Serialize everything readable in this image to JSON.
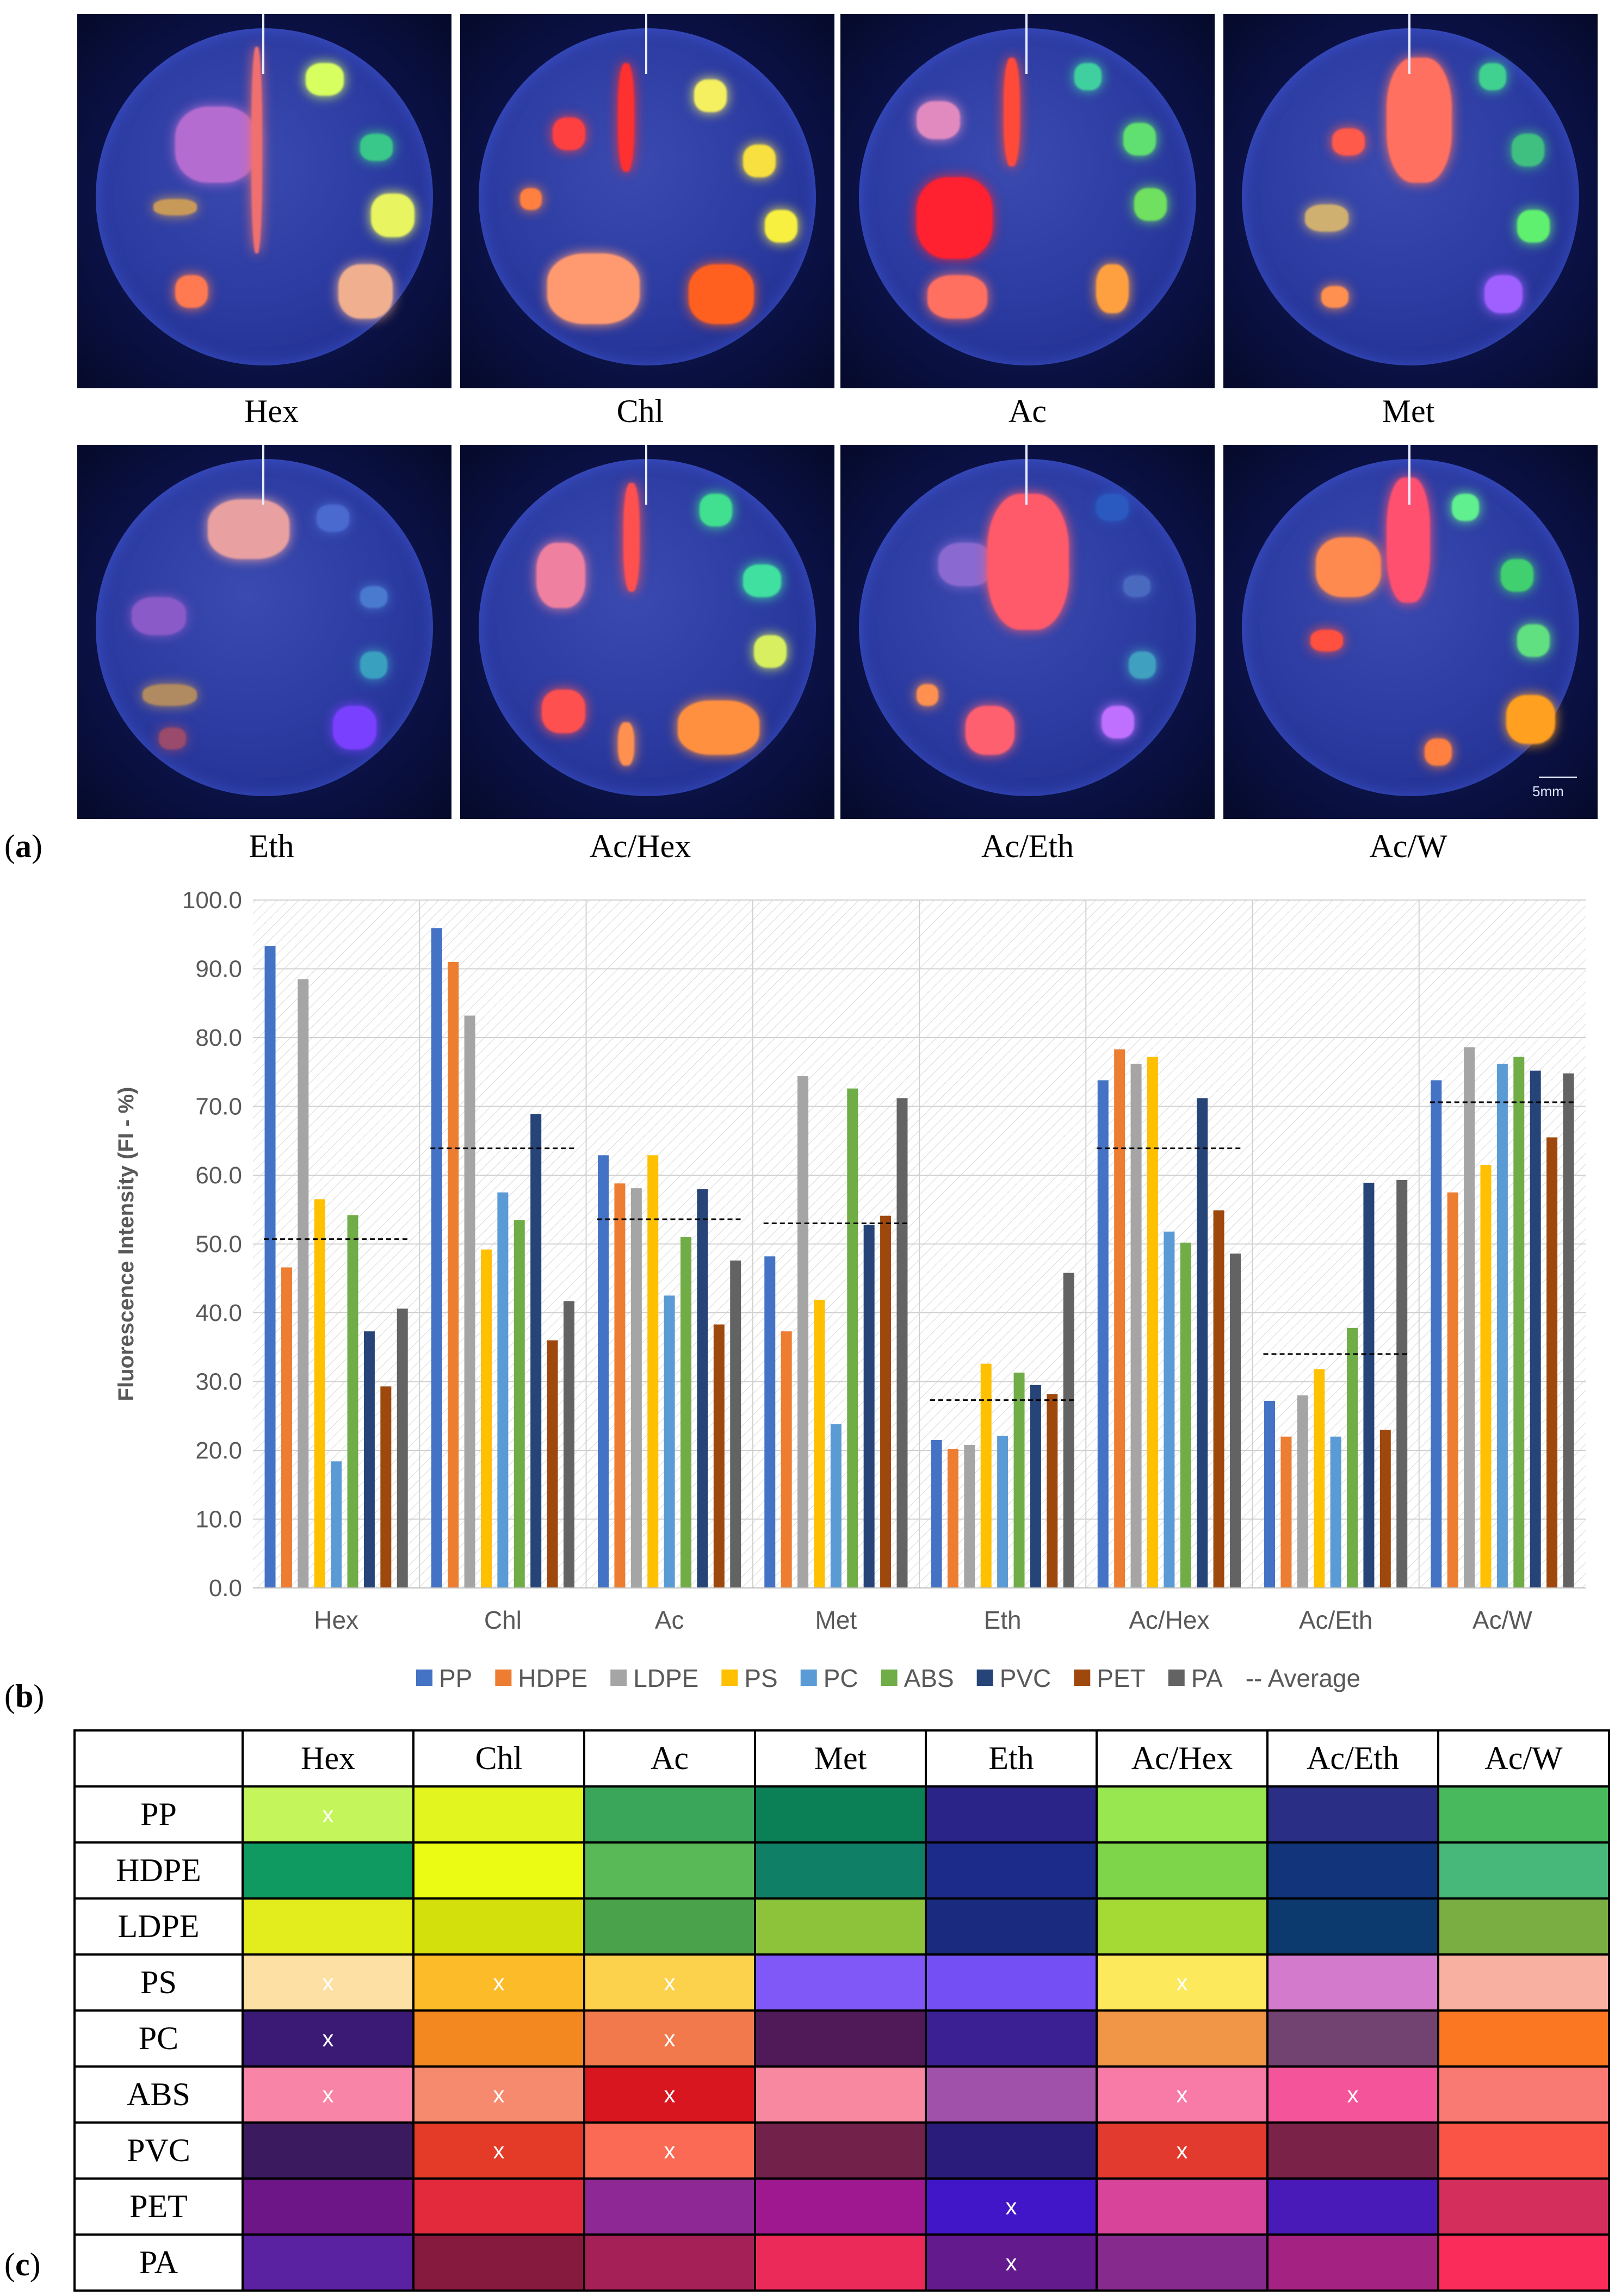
{
  "panel_letters": {
    "a": "a",
    "b": "b",
    "c": "c"
  },
  "photos": {
    "labels": [
      "Hex",
      "Chl",
      "Ac",
      "Met",
      "Eth",
      "Ac/Hex",
      "Ac/Eth",
      "Ac/W"
    ],
    "scale_bar_label": "5mm"
  },
  "chart_data": {
    "type": "bar",
    "ylabel": "Fluorescence Intensity (FI - %)",
    "xlabel": "",
    "ylim": [
      0,
      100
    ],
    "yticks": [
      "0.0",
      "10.0",
      "20.0",
      "30.0",
      "40.0",
      "50.0",
      "60.0",
      "70.0",
      "80.0",
      "90.0",
      "100.0"
    ],
    "categories": [
      "Hex",
      "Chl",
      "Ac",
      "Met",
      "Eth",
      "Ac/Hex",
      "Ac/Eth",
      "Ac/W"
    ],
    "series": [
      {
        "name": "PP",
        "color": "#4472C4",
        "values": [
          93.3,
          95.9,
          62.9,
          48.2,
          21.5,
          73.8,
          27.2,
          73.8
        ]
      },
      {
        "name": "HDPE",
        "color": "#ED7D31",
        "values": [
          46.6,
          91.0,
          58.8,
          37.3,
          20.2,
          78.3,
          22.0,
          57.5
        ]
      },
      {
        "name": "LDPE",
        "color": "#A5A5A5",
        "values": [
          88.5,
          83.2,
          58.1,
          74.4,
          20.8,
          76.2,
          28.0,
          78.6
        ]
      },
      {
        "name": "PS",
        "color": "#FFC000",
        "values": [
          56.5,
          49.2,
          62.9,
          41.9,
          32.6,
          77.2,
          31.8,
          61.5
        ]
      },
      {
        "name": "PC",
        "color": "#5B9BD5",
        "values": [
          18.4,
          57.5,
          42.5,
          23.8,
          22.1,
          51.8,
          22.0,
          76.2
        ]
      },
      {
        "name": "ABS",
        "color": "#70AD47",
        "values": [
          54.2,
          53.5,
          51.0,
          72.6,
          31.3,
          50.2,
          37.8,
          77.2
        ]
      },
      {
        "name": "PVC",
        "color": "#264478",
        "values": [
          37.3,
          68.9,
          58.0,
          52.8,
          29.5,
          71.2,
          58.9,
          75.2
        ]
      },
      {
        "name": "PET",
        "color": "#9E480E",
        "values": [
          29.3,
          36.0,
          38.3,
          54.1,
          28.2,
          54.9,
          23.0,
          65.5
        ]
      },
      {
        "name": "PA",
        "color": "#636363",
        "values": [
          40.6,
          41.7,
          47.6,
          71.2,
          45.8,
          48.6,
          59.3,
          74.8
        ]
      }
    ],
    "average": [
      50.7,
      63.9,
      53.6,
      53.0,
      27.3,
      63.9,
      34.0,
      70.6
    ],
    "legend": [
      "PP",
      "HDPE",
      "LDPE",
      "PS",
      "PC",
      "ABS",
      "PVC",
      "PET",
      "PA",
      "-- Average"
    ],
    "legend_position": "bottom",
    "grid": true
  },
  "table": {
    "columns": [
      "Hex",
      "Chl",
      "Ac",
      "Met",
      "Eth",
      "Ac/Hex",
      "Ac/Eth",
      "Ac/W"
    ],
    "rows": [
      {
        "label": "PP",
        "colors": [
          "#c4f55a",
          "#e2f51e",
          "#3aa65a",
          "#0b7f55",
          "#2a2489",
          "#98e650",
          "#2a2e84",
          "#48b95c"
        ],
        "marks": [
          "x",
          "",
          "",
          "",
          "",
          "",
          "",
          ""
        ]
      },
      {
        "label": "HDPE",
        "colors": [
          "#0f9a62",
          "#ecfb14",
          "#5ab957",
          "#0f7f65",
          "#1c2b8a",
          "#7ed54a",
          "#12347a",
          "#48b87a"
        ],
        "marks": [
          "",
          "",
          "",
          "",
          "",
          "",
          "",
          ""
        ]
      },
      {
        "label": "LDPE",
        "colors": [
          "#e3ed1e",
          "#d4e00c",
          "#4aa24a",
          "#8cc33a",
          "#1a2a7e",
          "#a5d934",
          "#0c3a6e",
          "#7aae42"
        ],
        "marks": [
          "",
          "",
          "",
          "",
          "",
          "",
          "",
          ""
        ]
      },
      {
        "label": "PS",
        "colors": [
          "#fde0a3",
          "#fcbb28",
          "#fcd24c",
          "#8058f8",
          "#7450f4",
          "#fce95c",
          "#d47acc",
          "#f8b0a0"
        ],
        "marks": [
          "x",
          "x",
          "x",
          "",
          "",
          "x",
          "",
          ""
        ]
      },
      {
        "label": "PC",
        "colors": [
          "#3a1a74",
          "#f38720",
          "#f2794c",
          "#501a58",
          "#3a2092",
          "#f09646",
          "#724270",
          "#fc7722"
        ],
        "marks": [
          "x",
          "",
          "x",
          "",
          "",
          "",
          "",
          ""
        ]
      },
      {
        "label": "ABS",
        "colors": [
          "#f885a8",
          "#f68a6e",
          "#d81620",
          "#f887a0",
          "#a052aa",
          "#f87aa6",
          "#f4549a",
          "#f97a72"
        ],
        "marks": [
          "x",
          "x",
          "x",
          "",
          "",
          "x",
          "x",
          ""
        ]
      },
      {
        "label": "PVC",
        "colors": [
          "#3c1a60",
          "#e43a28",
          "#fa6a54",
          "#72224a",
          "#2a1c7a",
          "#e23a2e",
          "#7a2248",
          "#fa5446"
        ],
        "marks": [
          "",
          "x",
          "x",
          "",
          "",
          "x",
          "",
          ""
        ]
      },
      {
        "label": "PET",
        "colors": [
          "#6c1688",
          "#e22a3c",
          "#8e2894",
          "#a01890",
          "#4016c8",
          "#d8449a",
          "#4a1ab8",
          "#d42f5c"
        ],
        "marks": [
          "",
          "",
          "",
          "",
          "x",
          "",
          "",
          ""
        ]
      },
      {
        "label": "PA",
        "colors": [
          "#5a22a0",
          "#861a3e",
          "#a62058",
          "#ec2a5a",
          "#621a8c",
          "#862a8e",
          "#a42282",
          "#fa2c5a"
        ],
        "marks": [
          "",
          "",
          "",
          "",
          "x",
          "",
          "",
          ""
        ]
      }
    ]
  }
}
